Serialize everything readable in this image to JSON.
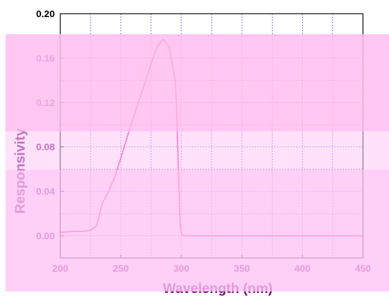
{
  "chart_data": {
    "type": "line",
    "title": "",
    "xlabel": "Wavelength (nm)",
    "ylabel": "Responsivity",
    "xlim": [
      200,
      450
    ],
    "ylim": [
      -0.02,
      0.2
    ],
    "x_ticks": [
      200,
      250,
      300,
      350,
      400,
      450
    ],
    "y_ticks": [
      0.0,
      0.04,
      0.08,
      0.12,
      0.16,
      0.2
    ],
    "y_tick_labels": [
      "0.00",
      "0.04",
      "0.08",
      "0.12",
      "0.16",
      "0.20"
    ],
    "grid": true,
    "series": [
      {
        "color": "#ff1493",
        "x": [
          200,
          210,
          220,
          225,
          230,
          235,
          240,
          245,
          250,
          255,
          260,
          265,
          270,
          275,
          280,
          285,
          290,
          295,
          296,
          297,
          298,
          299,
          300,
          301,
          302,
          305,
          310,
          320,
          350,
          400,
          450
        ],
        "y": [
          0.003,
          0.004,
          0.004,
          0.005,
          0.009,
          0.03,
          0.04,
          0.053,
          0.07,
          0.088,
          0.105,
          0.122,
          0.138,
          0.155,
          0.17,
          0.177,
          0.17,
          0.14,
          0.115,
          0.08,
          0.045,
          0.012,
          0.002,
          0.001,
          0.0,
          0.0,
          0.0,
          0.0,
          0.0,
          0.0,
          0.0
        ]
      }
    ]
  }
}
